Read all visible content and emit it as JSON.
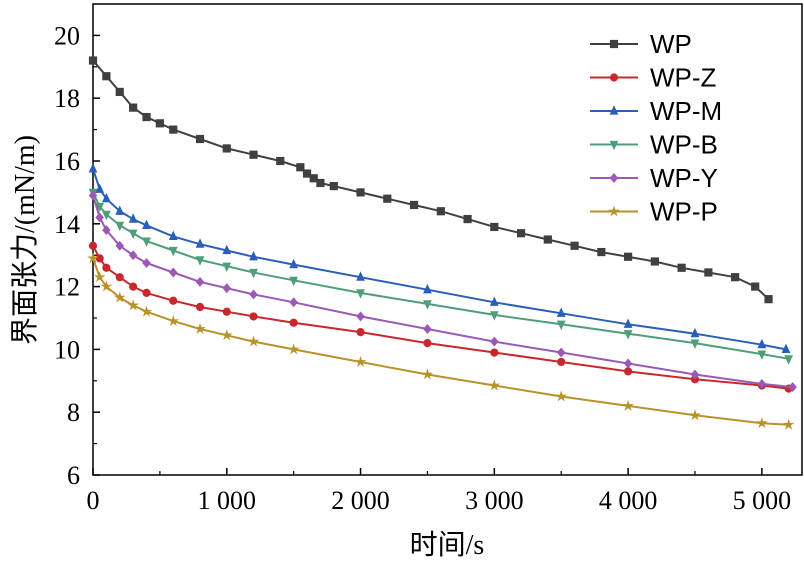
{
  "chart_data": {
    "type": "line",
    "title": "",
    "xlabel": "时间/s",
    "ylabel": "界面张力/(mN/m)",
    "xlim": [
      0,
      5300
    ],
    "ylim": [
      6,
      21
    ],
    "xticks": [
      {
        "value": 0,
        "label": "0"
      },
      {
        "value": 1000,
        "label": "1 000"
      },
      {
        "value": 2000,
        "label": "2 000"
      },
      {
        "value": 3000,
        "label": "3 000"
      },
      {
        "value": 4000,
        "label": "4 000"
      },
      {
        "value": 5000,
        "label": "5 000"
      }
    ],
    "yticks": [
      {
        "value": 6,
        "label": "6"
      },
      {
        "value": 8,
        "label": "8"
      },
      {
        "value": 10,
        "label": "10"
      },
      {
        "value": 12,
        "label": "12"
      },
      {
        "value": 14,
        "label": "14"
      },
      {
        "value": 16,
        "label": "16"
      },
      {
        "value": 18,
        "label": "18"
      },
      {
        "value": 20,
        "label": "20"
      }
    ],
    "grid": false,
    "legend": "top-right",
    "series": [
      {
        "name": "WP",
        "color": "#404040",
        "marker": "square",
        "x": [
          0,
          100,
          200,
          300,
          400,
          500,
          600,
          800,
          1000,
          1200,
          1400,
          1550,
          1600,
          1650,
          1700,
          1800,
          2000,
          2200,
          2400,
          2600,
          2800,
          3000,
          3200,
          3400,
          3600,
          3800,
          4000,
          4200,
          4400,
          4600,
          4800,
          4950,
          5050
        ],
        "y": [
          19.2,
          18.7,
          18.2,
          17.7,
          17.4,
          17.2,
          17.0,
          16.7,
          16.4,
          16.2,
          16.0,
          15.8,
          15.6,
          15.45,
          15.3,
          15.2,
          15.0,
          14.8,
          14.6,
          14.4,
          14.15,
          13.9,
          13.7,
          13.5,
          13.3,
          13.1,
          12.95,
          12.8,
          12.6,
          12.45,
          12.3,
          12.0,
          11.6
        ]
      },
      {
        "name": "WP-Z",
        "color": "#c8282d",
        "marker": "circle",
        "x": [
          0,
          50,
          100,
          200,
          300,
          400,
          600,
          800,
          1000,
          1200,
          1500,
          2000,
          2500,
          3000,
          3500,
          4000,
          4500,
          5000,
          5200
        ],
        "y": [
          13.3,
          12.9,
          12.6,
          12.3,
          12.0,
          11.8,
          11.55,
          11.35,
          11.2,
          11.05,
          10.85,
          10.55,
          10.2,
          9.9,
          9.6,
          9.3,
          9.05,
          8.85,
          8.75
        ]
      },
      {
        "name": "WP-M",
        "color": "#2a5fb8",
        "marker": "triangle-up",
        "x": [
          0,
          50,
          100,
          200,
          300,
          400,
          600,
          800,
          1000,
          1200,
          1500,
          2000,
          2500,
          3000,
          3500,
          4000,
          4500,
          5000,
          5180
        ],
        "y": [
          15.75,
          15.1,
          14.8,
          14.4,
          14.15,
          13.95,
          13.6,
          13.35,
          13.15,
          12.95,
          12.7,
          12.3,
          11.9,
          11.5,
          11.15,
          10.8,
          10.5,
          10.15,
          10.0
        ]
      },
      {
        "name": "WP-B",
        "color": "#4f9e7a",
        "marker": "triangle-down",
        "x": [
          0,
          50,
          100,
          200,
          300,
          400,
          600,
          800,
          1000,
          1200,
          1500,
          2000,
          2500,
          3000,
          3500,
          4000,
          4500,
          5000,
          5200
        ],
        "y": [
          15.0,
          14.55,
          14.3,
          13.95,
          13.7,
          13.45,
          13.15,
          12.85,
          12.65,
          12.45,
          12.2,
          11.8,
          11.45,
          11.1,
          10.8,
          10.5,
          10.2,
          9.85,
          9.7
        ]
      },
      {
        "name": "WP-Y",
        "color": "#9b59b6",
        "marker": "diamond",
        "x": [
          0,
          50,
          100,
          200,
          300,
          400,
          600,
          800,
          1000,
          1200,
          1500,
          2000,
          2500,
          3000,
          3500,
          4000,
          4500,
          5000,
          5230
        ],
        "y": [
          14.9,
          14.2,
          13.8,
          13.3,
          13.0,
          12.75,
          12.45,
          12.15,
          11.95,
          11.75,
          11.5,
          11.05,
          10.65,
          10.25,
          9.9,
          9.55,
          9.2,
          8.9,
          8.8
        ]
      },
      {
        "name": "WP-P",
        "color": "#b8922a",
        "marker": "star",
        "x": [
          0,
          50,
          100,
          200,
          300,
          400,
          600,
          800,
          1000,
          1200,
          1500,
          2000,
          2500,
          3000,
          3500,
          4000,
          4500,
          5000,
          5200
        ],
        "y": [
          12.9,
          12.3,
          12.0,
          11.65,
          11.4,
          11.2,
          10.9,
          10.65,
          10.45,
          10.25,
          10.0,
          9.6,
          9.2,
          8.85,
          8.5,
          8.2,
          7.9,
          7.65,
          7.6
        ]
      }
    ]
  }
}
